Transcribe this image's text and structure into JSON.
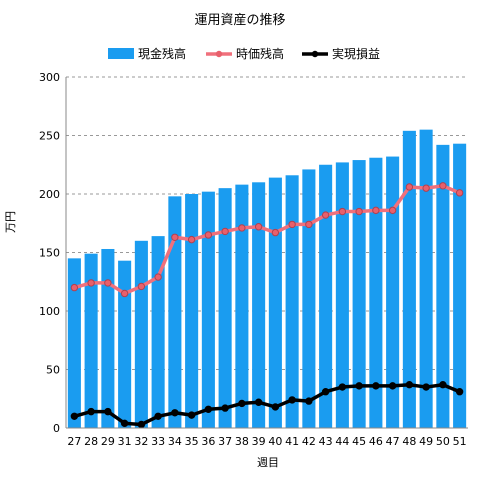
{
  "chart_data": {
    "type": "bar",
    "title": "運用資産の推移",
    "xlabel": "週目",
    "ylabel": "万円",
    "ylim": [
      0,
      300
    ],
    "yticks": [
      0,
      50,
      100,
      150,
      200,
      250,
      300
    ],
    "grid": true,
    "legend_position": "top",
    "categories": [
      "27",
      "28",
      "29",
      "31",
      "32",
      "33",
      "34",
      "35",
      "36",
      "37",
      "38",
      "39",
      "40",
      "41",
      "42",
      "43",
      "44",
      "45",
      "46",
      "47",
      "48",
      "49",
      "50",
      "51"
    ],
    "series": [
      {
        "name": "現金残高",
        "type": "bar",
        "color": "#1a9cf0",
        "values": [
          145,
          149,
          153,
          143,
          160,
          164,
          198,
          200,
          202,
          205,
          208,
          210,
          214,
          216,
          221,
          225,
          227,
          229,
          231,
          232,
          254,
          255,
          242,
          243
        ]
      },
      {
        "name": "時価残高",
        "type": "line",
        "color": "#f0707c",
        "values": [
          120,
          124,
          124,
          115,
          121,
          129,
          163,
          161,
          165,
          168,
          171,
          172,
          167,
          174,
          174,
          182,
          185,
          185,
          186,
          186,
          206,
          205,
          207,
          201
        ]
      },
      {
        "name": "実現損益",
        "type": "line",
        "color": "#000000",
        "values": [
          10,
          14,
          14,
          4,
          3,
          10,
          13,
          11,
          16,
          17,
          21,
          22,
          18,
          24,
          23,
          31,
          35,
          36,
          36,
          36,
          37,
          35,
          37,
          31
        ]
      }
    ]
  }
}
